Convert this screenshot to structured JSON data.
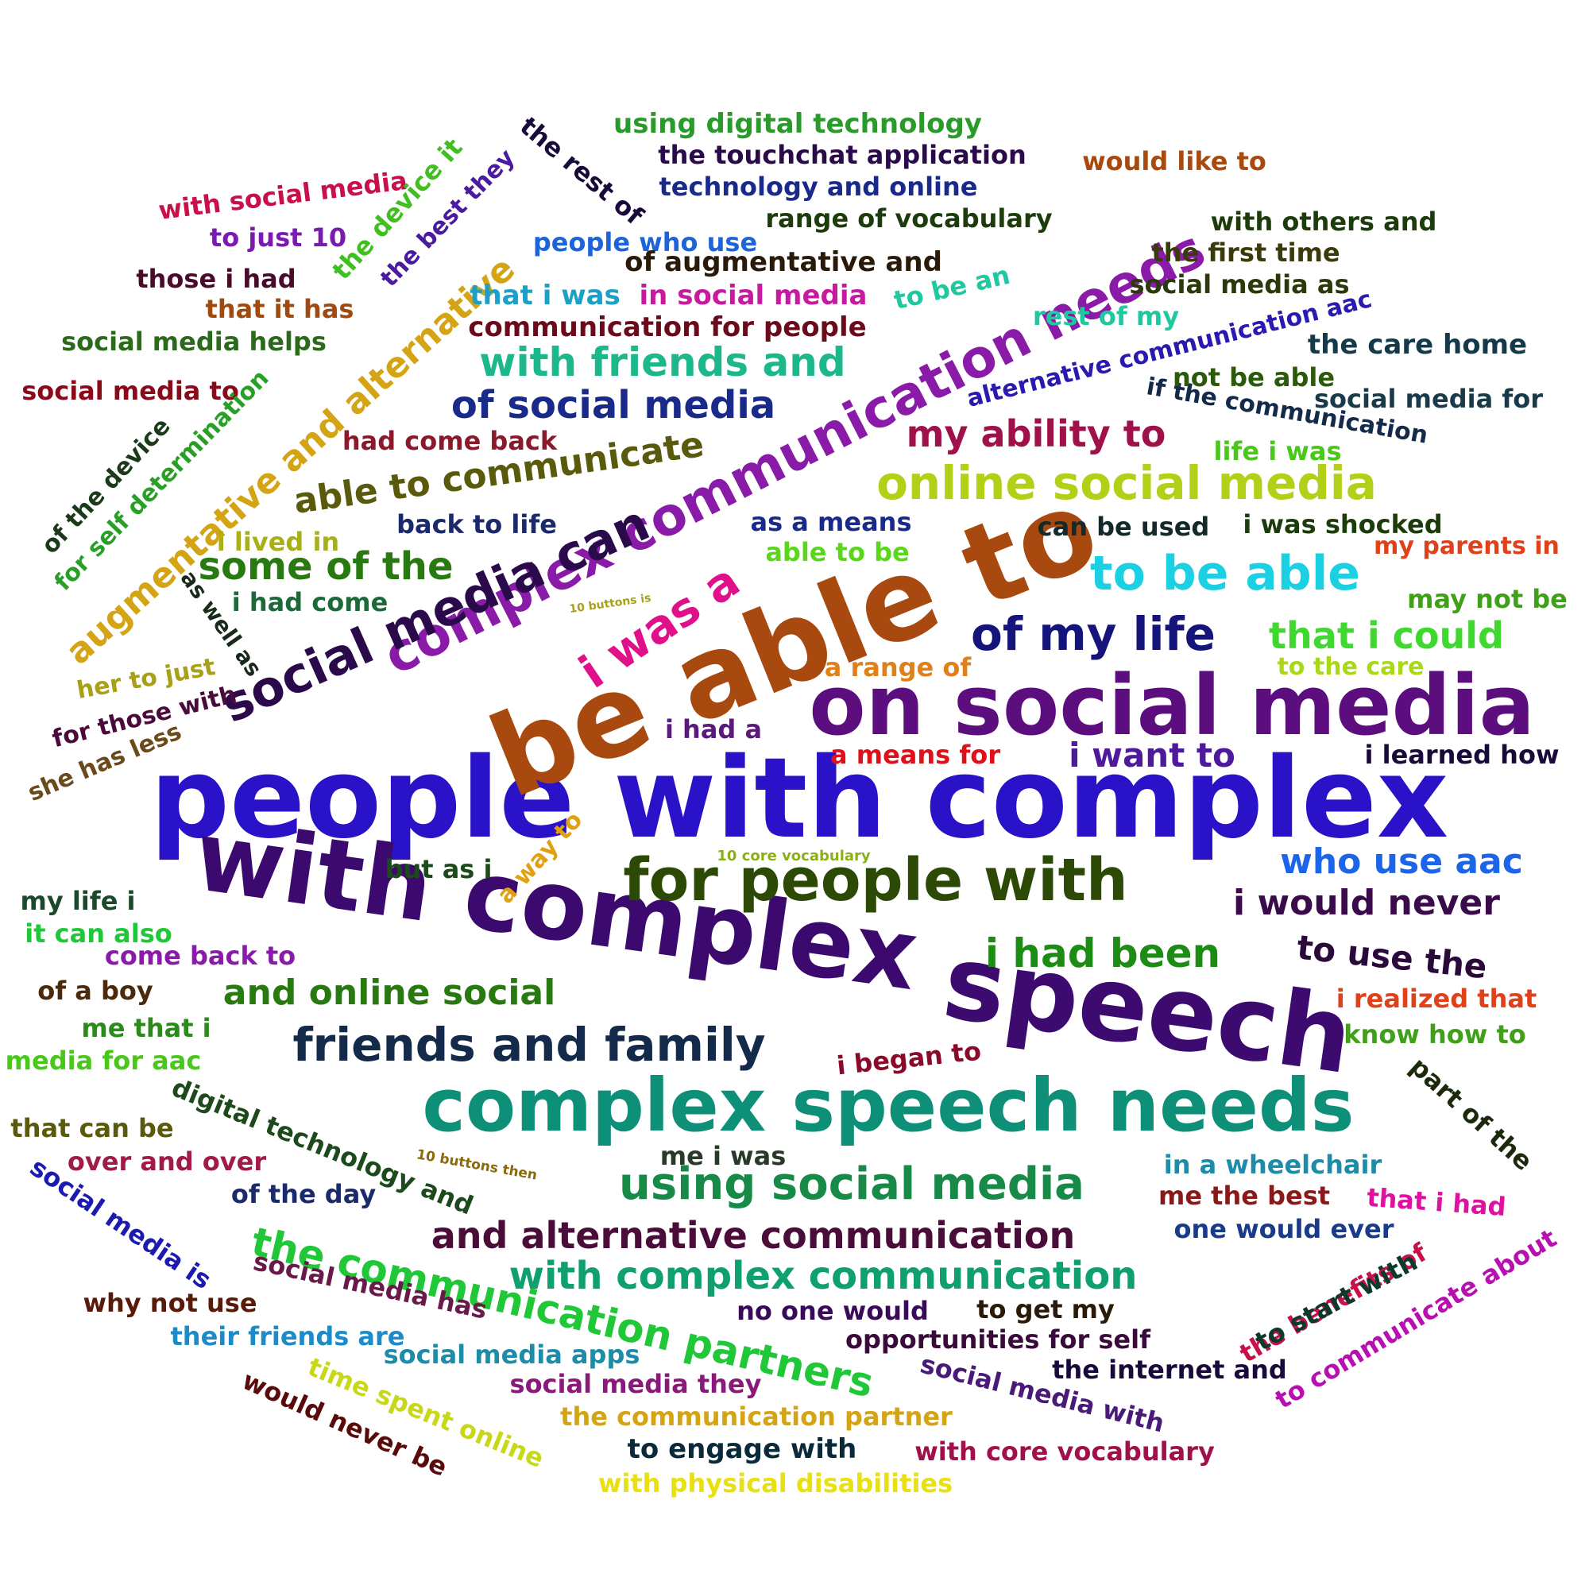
{
  "phrases": [
    {
      "text": "people with complex",
      "color": "#2a12c8"
    },
    {
      "text": "with complex",
      "color": "#3c0a6e"
    },
    {
      "text": "speech",
      "color": "#3d0b70"
    },
    {
      "text": "be able to",
      "color": "#a8490f"
    },
    {
      "text": "on social media",
      "color": "#5c0e7e"
    },
    {
      "text": "complex speech needs",
      "color": "#0e8f78"
    },
    {
      "text": "for people with",
      "color": "#2c4a06"
    },
    {
      "text": "complex communication needs",
      "color": "#8a1aa8"
    },
    {
      "text": "social media can",
      "color": "#2a0a4a"
    },
    {
      "text": "i was a",
      "color": "#e0108a"
    },
    {
      "text": "online social media",
      "color": "#b4cf18"
    },
    {
      "text": "to be able",
      "color": "#1cd0e4"
    },
    {
      "text": "of my life",
      "color": "#14147a"
    },
    {
      "text": "using social media",
      "color": "#188a48"
    },
    {
      "text": "friends and family",
      "color": "#142a4a"
    },
    {
      "text": "i had been",
      "color": "#1c8c14"
    },
    {
      "text": "augmentative and alternative",
      "color": "#d4a414"
    },
    {
      "text": "the communication partners",
      "color": "#20c838"
    },
    {
      "text": "and alternative communication",
      "color": "#4a0c38"
    },
    {
      "text": "with complex communication",
      "color": "#10a070"
    },
    {
      "text": "of social media",
      "color": "#1a2a8a"
    },
    {
      "text": "with friends and",
      "color": "#1cb88c"
    },
    {
      "text": "able to communicate",
      "color": "#5a5a0c"
    },
    {
      "text": "my ability to",
      "color": "#a0104a"
    },
    {
      "text": "some of the",
      "color": "#287a10"
    },
    {
      "text": "that i could",
      "color": "#40d830"
    },
    {
      "text": "who use aac",
      "color": "#1c64e8"
    },
    {
      "text": "i would never",
      "color": "#3a0a4a"
    },
    {
      "text": "and online social",
      "color": "#287a10"
    },
    {
      "text": "to use the",
      "color": "#2a0a3a"
    },
    {
      "text": "i want to",
      "color": "#4c1a9a"
    },
    {
      "text": "alternative communication aac",
      "color": "#2a1ab0"
    },
    {
      "text": "if the communication",
      "color": "#142a4a"
    },
    {
      "text": "using digital technology",
      "color": "#2a9a2a"
    },
    {
      "text": "the touchchat application",
      "color": "#2a0a4a"
    },
    {
      "text": "technology and online",
      "color": "#1a2a8a"
    },
    {
      "text": "range of vocabulary",
      "color": "#1c3c0c"
    },
    {
      "text": "the rest of",
      "color": "#1a0a3a"
    },
    {
      "text": "would like to",
      "color": "#a8490f"
    },
    {
      "text": "with others and",
      "color": "#1c3c0c"
    },
    {
      "text": "the first time",
      "color": "#3a3a0a"
    },
    {
      "text": "social media as",
      "color": "#2a3a0a"
    },
    {
      "text": "with social media",
      "color": "#c8104a"
    },
    {
      "text": "to just 10",
      "color": "#7a1ab0"
    },
    {
      "text": "the device it",
      "color": "#40c020"
    },
    {
      "text": "the best they",
      "color": "#4a1aa0"
    },
    {
      "text": "people who use",
      "color": "#1c64d8"
    },
    {
      "text": "of augmentative and",
      "color": "#2a1a0a"
    },
    {
      "text": "those i had",
      "color": "#4a0a2a"
    },
    {
      "text": "that it has",
      "color": "#a04a10"
    },
    {
      "text": "that i was",
      "color": "#1ca0c8"
    },
    {
      "text": "in social media",
      "color": "#c81aa0"
    },
    {
      "text": "to be an",
      "color": "#20c8a0"
    },
    {
      "text": "rest of my",
      "color": "#20c8a0"
    },
    {
      "text": "communication for people",
      "color": "#6a0a1a"
    },
    {
      "text": "social media helps",
      "color": "#2a6a1a"
    },
    {
      "text": "the care home",
      "color": "#143a4a"
    },
    {
      "text": "social media to",
      "color": "#8a0a1a"
    },
    {
      "text": "not be able",
      "color": "#2a5a0a"
    },
    {
      "text": "social media for",
      "color": "#1a3a4a"
    },
    {
      "text": "had come back",
      "color": "#8a1a2a"
    },
    {
      "text": "life i was",
      "color": "#48c818"
    },
    {
      "text": "of the device",
      "color": "#1a3a1a"
    },
    {
      "text": "for self determination",
      "color": "#28a028"
    },
    {
      "text": "i lived in",
      "color": "#a8b018"
    },
    {
      "text": "back to life",
      "color": "#1a2a6a"
    },
    {
      "text": "as a means",
      "color": "#1a2a8a"
    },
    {
      "text": "can be used",
      "color": "#142a2a"
    },
    {
      "text": "i was shocked",
      "color": "#1c3c0c"
    },
    {
      "text": "my parents in",
      "color": "#e0401a"
    },
    {
      "text": "able to be",
      "color": "#58d818"
    },
    {
      "text": "as well as",
      "color": "#1a2a1a"
    },
    {
      "text": "i had come",
      "color": "#1c6a3a"
    },
    {
      "text": "10 buttons is",
      "color": "#a8a018"
    },
    {
      "text": "may not be",
      "color": "#40a01a"
    },
    {
      "text": "her to just",
      "color": "#a8a018"
    },
    {
      "text": "a range of",
      "color": "#e0801a"
    },
    {
      "text": "to the care",
      "color": "#a8d818"
    },
    {
      "text": "for those with",
      "color": "#4a0a3a"
    },
    {
      "text": "she has less",
      "color": "#6a4a1a"
    },
    {
      "text": "i had a",
      "color": "#5a1a7a"
    },
    {
      "text": "a means for",
      "color": "#e0101a"
    },
    {
      "text": "i learned how",
      "color": "#1a0a3a"
    },
    {
      "text": "a way to",
      "color": "#e0a010"
    },
    {
      "text": "10 core vocabulary",
      "color": "#8ab018"
    },
    {
      "text": "but as i",
      "color": "#1c4a1c"
    },
    {
      "text": "my life i",
      "color": "#1a4a2a"
    },
    {
      "text": "it can also",
      "color": "#20c838"
    },
    {
      "text": "come back to",
      "color": "#8a1aa8"
    },
    {
      "text": "of a boy",
      "color": "#4a2a0a"
    },
    {
      "text": "i realized that",
      "color": "#e0401a"
    },
    {
      "text": "me that i",
      "color": "#2a8a1a"
    },
    {
      "text": "know how to",
      "color": "#40a01a"
    },
    {
      "text": "media for aac",
      "color": "#48c818"
    },
    {
      "text": "i began to",
      "color": "#8a0a2a"
    },
    {
      "text": "part of the",
      "color": "#1a2a0a"
    },
    {
      "text": "digital technology and",
      "color": "#1c4a1c"
    },
    {
      "text": "that can be",
      "color": "#5a5a0c"
    },
    {
      "text": "over and over",
      "color": "#a01a4a"
    },
    {
      "text": "10 buttons then",
      "color": "#8a6a0a"
    },
    {
      "text": "me i was",
      "color": "#2a3a2a"
    },
    {
      "text": "in a wheelchair",
      "color": "#1c8ca8"
    },
    {
      "text": "of the day",
      "color": "#1a2a6a"
    },
    {
      "text": "me the best",
      "color": "#8a1a1a"
    },
    {
      "text": "that i had",
      "color": "#e010a0"
    },
    {
      "text": "social media is",
      "color": "#1c1ab0"
    },
    {
      "text": "one would ever",
      "color": "#1a3a8a"
    },
    {
      "text": "the benefits of",
      "color": "#c8104a"
    },
    {
      "text": "to communicate about",
      "color": "#b810b0"
    },
    {
      "text": "social media has",
      "color": "#6a1a4a"
    },
    {
      "text": "why not use",
      "color": "#5a1a0a"
    },
    {
      "text": "no one would",
      "color": "#3a0a5a"
    },
    {
      "text": "to get my",
      "color": "#2a1a0a"
    },
    {
      "text": "to start with",
      "color": "#0a3a2a"
    },
    {
      "text": "their friends are",
      "color": "#1c8cc8"
    },
    {
      "text": "social media apps",
      "color": "#1c8ca8"
    },
    {
      "text": "opportunities for self",
      "color": "#3a0a3a"
    },
    {
      "text": "social media with",
      "color": "#4a1a7a"
    },
    {
      "text": "time spent online",
      "color": "#c8d818"
    },
    {
      "text": "social media they",
      "color": "#8a1a7a"
    },
    {
      "text": "the internet and",
      "color": "#1a0a3a"
    },
    {
      "text": "would never be",
      "color": "#5a0a0a"
    },
    {
      "text": "the communication partner",
      "color": "#d4a414"
    },
    {
      "text": "to engage with",
      "color": "#0a2a3a"
    },
    {
      "text": "with core vocabulary",
      "color": "#a0104a"
    },
    {
      "text": "with physical disabilities",
      "color": "#e8e010"
    }
  ]
}
